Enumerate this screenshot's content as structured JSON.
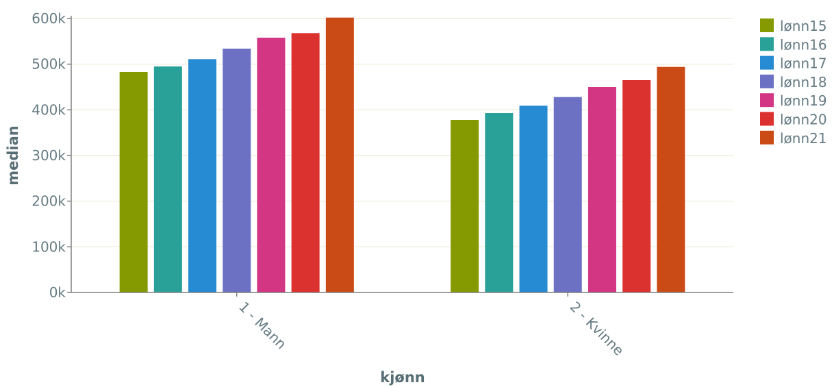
{
  "chart_data": {
    "type": "bar",
    "title": "",
    "xlabel": "kjønn",
    "ylabel": "median",
    "categories": [
      "1 - Mann",
      "2 - Kvinne"
    ],
    "series": [
      {
        "name": "lønn15",
        "color": "#859900",
        "values": [
          483000,
          378000
        ]
      },
      {
        "name": "lønn16",
        "color": "#2aa198",
        "values": [
          495000,
          393000
        ]
      },
      {
        "name": "lønn17",
        "color": "#268bd2",
        "values": [
          511000,
          409000
        ]
      },
      {
        "name": "lønn18",
        "color": "#6c71c4",
        "values": [
          534000,
          428000
        ]
      },
      {
        "name": "lønn19",
        "color": "#d33682",
        "values": [
          558000,
          450000
        ]
      },
      {
        "name": "lønn20",
        "color": "#dc322f",
        "values": [
          568000,
          465000
        ]
      },
      {
        "name": "lønn21",
        "color": "#cb4b16",
        "values": [
          602000,
          494000
        ]
      }
    ],
    "ylim": [
      0,
      600000
    ],
    "yticks": [
      0,
      100000,
      200000,
      300000,
      400000,
      500000,
      600000
    ],
    "ytick_labels": [
      "0k",
      "100k",
      "200k",
      "300k",
      "400k",
      "500k",
      "600k"
    ],
    "grid": true,
    "legend": "top-right"
  }
}
